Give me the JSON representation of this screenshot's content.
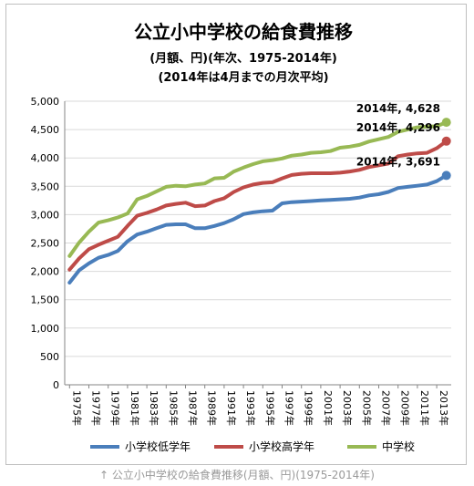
{
  "chart_data": {
    "type": "line",
    "title": "公立小中学校の給食費推移",
    "subtitle_1": "(月額、円)(年次、1975-2014年)",
    "subtitle_2": "(2014年は4月までの月次平均)",
    "x": [
      1975,
      1976,
      1977,
      1978,
      1979,
      1980,
      1981,
      1982,
      1983,
      1984,
      1985,
      1986,
      1987,
      1988,
      1989,
      1990,
      1991,
      1992,
      1993,
      1994,
      1995,
      1996,
      1997,
      1998,
      1999,
      2000,
      2001,
      2002,
      2003,
      2004,
      2005,
      2006,
      2007,
      2008,
      2009,
      2010,
      2011,
      2012,
      2013,
      2014
    ],
    "x_tick_labels": [
      "1975年",
      "1977年",
      "1979年",
      "1981年",
      "1983年",
      "1985年",
      "1987年",
      "1989年",
      "1991年",
      "1993年",
      "1995年",
      "1997年",
      "1999年",
      "2001年",
      "2003年",
      "2005年",
      "2007年",
      "2009年",
      "2011年",
      "2013年"
    ],
    "ylim": [
      0,
      5000
    ],
    "y_ticks": [
      "0",
      "500",
      "1,000",
      "1,500",
      "2,000",
      "2,500",
      "3,000",
      "3,500",
      "4,000",
      "4,500",
      "5,000"
    ],
    "grid": "horizontal",
    "legend_position": "bottom",
    "series": [
      {
        "name": "小学校低学年",
        "color": "#4a7ebb",
        "values": [
          1800,
          2020,
          2140,
          2240,
          2290,
          2360,
          2530,
          2650,
          2700,
          2760,
          2820,
          2830,
          2830,
          2760,
          2760,
          2800,
          2850,
          2920,
          3010,
          3040,
          3060,
          3070,
          3200,
          3220,
          3230,
          3240,
          3250,
          3260,
          3270,
          3280,
          3300,
          3340,
          3360,
          3400,
          3470,
          3490,
          3510,
          3530,
          3590,
          3691
        ]
      },
      {
        "name": "小学校高学年",
        "color": "#be4b48",
        "values": [
          2030,
          2230,
          2390,
          2470,
          2540,
          2610,
          2800,
          2980,
          3030,
          3090,
          3160,
          3190,
          3210,
          3150,
          3160,
          3240,
          3290,
          3400,
          3480,
          3530,
          3560,
          3570,
          3640,
          3700,
          3720,
          3730,
          3730,
          3730,
          3740,
          3760,
          3790,
          3840,
          3870,
          3900,
          4030,
          4060,
          4080,
          4090,
          4170,
          4296
        ]
      },
      {
        "name": "中学校",
        "color": "#98b954",
        "values": [
          2270,
          2510,
          2700,
          2860,
          2900,
          2950,
          3020,
          3270,
          3330,
          3410,
          3490,
          3510,
          3500,
          3530,
          3550,
          3640,
          3650,
          3760,
          3830,
          3890,
          3940,
          3960,
          3990,
          4040,
          4060,
          4090,
          4100,
          4120,
          4180,
          4200,
          4230,
          4290,
          4330,
          4370,
          4460,
          4500,
          4540,
          4550,
          4560,
          4628
        ]
      }
    ],
    "annotations": [
      {
        "series": 2,
        "text": "2014年, 4,628"
      },
      {
        "series": 1,
        "text": "2014年, 4,296"
      },
      {
        "series": 0,
        "text": "2014年, 3,691"
      }
    ]
  },
  "caption": "↑ 公立小中学校の給食費推移(月額、円)(1975-2014年)"
}
